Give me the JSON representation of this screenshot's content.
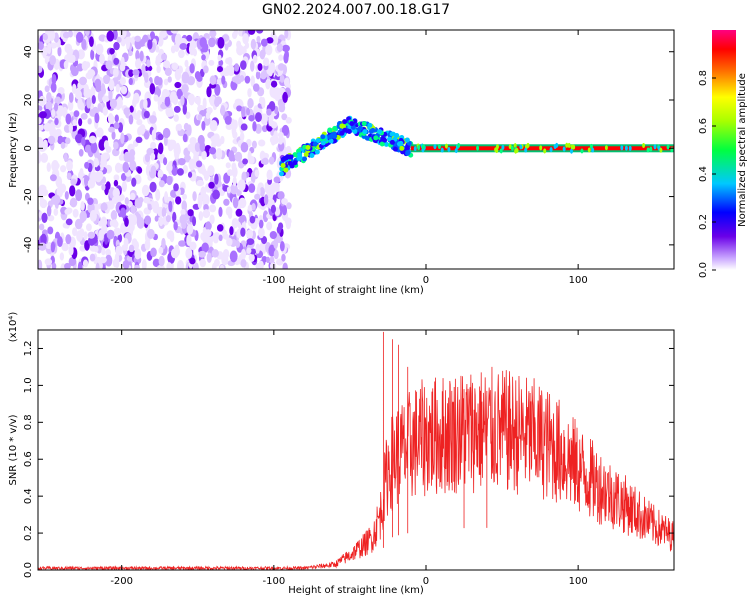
{
  "title": "GN02.2024.007.00.18.G17",
  "colors": {
    "series": "#ee2222",
    "axis": "#000000"
  },
  "chart_data": [
    {
      "type": "heatmap",
      "xlabel": "Height of straight line (km)",
      "ylabel": "Frequency (Hz)",
      "xlim": [
        -255,
        163
      ],
      "ylim": [
        -50,
        49
      ],
      "x_ticks": [
        -200,
        -100,
        0,
        100
      ],
      "x_tick_labels": [
        "-200",
        "-100",
        "0",
        "100"
      ],
      "y_ticks": [
        -40,
        -20,
        0,
        20,
        40
      ],
      "y_tick_labels": [
        "-40",
        "-20",
        "0",
        "20",
        "40"
      ],
      "colorbar": {
        "label": "Normalized spectral amplitude",
        "ticks": [
          0.0,
          0.2,
          0.4,
          0.6,
          0.8
        ],
        "tick_labels": [
          "0.0",
          "0.2",
          "0.4",
          "0.6",
          "0.8"
        ],
        "colormap": "rainbow (white-violet-blue-cyan-green-yellow-red-magenta)"
      },
      "regions": [
        {
          "x_range": [
            -255,
            -90
          ],
          "frequency_range": [
            -50,
            49
          ],
          "amplitude": "low, noise"
        },
        {
          "x_range": [
            -95,
            -10
          ],
          "frequency_center": [
            -8,
            10,
            0
          ],
          "amplitude": "rising signal"
        },
        {
          "x_range": [
            -10,
            163
          ],
          "frequency": 0,
          "amplitude": "high, steady"
        }
      ]
    },
    {
      "type": "line",
      "xlabel": "Height of straight line (km)",
      "ylabel": "SNR (10 * v/v)",
      "y_scale_label": "(x10⁴)",
      "xlim": [
        -255,
        163
      ],
      "ylim": [
        0,
        1.3
      ],
      "x_ticks": [
        -200,
        -100,
        0,
        100
      ],
      "x_tick_labels": [
        "-200",
        "-100",
        "0",
        "100"
      ],
      "y_ticks": [
        0,
        0.2,
        0.4,
        0.6,
        0.8,
        1.0,
        1.2
      ],
      "y_tick_labels": [
        "0.0",
        "0.2",
        "0.4",
        "0.6",
        "0.8",
        "1.0",
        "1.2"
      ],
      "series": [
        {
          "x": [
            -255,
            -200,
            -150,
            -100,
            -80,
            -60,
            -50,
            -40,
            -35,
            -30,
            -25,
            -20,
            -15,
            -10,
            0,
            10,
            20,
            30,
            40,
            50,
            60,
            70,
            80,
            90,
            100,
            110,
            120,
            130,
            140,
            150,
            163
          ],
          "y": [
            0.01,
            0.01,
            0.01,
            0.01,
            0.01,
            0.03,
            0.08,
            0.14,
            0.18,
            0.3,
            0.55,
            0.62,
            0.64,
            0.68,
            0.72,
            0.73,
            0.75,
            0.76,
            0.76,
            0.75,
            0.74,
            0.72,
            0.68,
            0.63,
            0.55,
            0.48,
            0.42,
            0.36,
            0.3,
            0.24,
            0.18
          ],
          "spikes": [
            {
              "x": -28,
              "y": 1.29
            },
            {
              "x": -22,
              "y": 1.25
            },
            {
              "x": -18,
              "y": 1.22
            },
            {
              "x": -12,
              "y": 1.1
            },
            {
              "x": 25,
              "y": 0.98
            },
            {
              "x": 40,
              "y": 0.97
            }
          ]
        }
      ]
    }
  ]
}
